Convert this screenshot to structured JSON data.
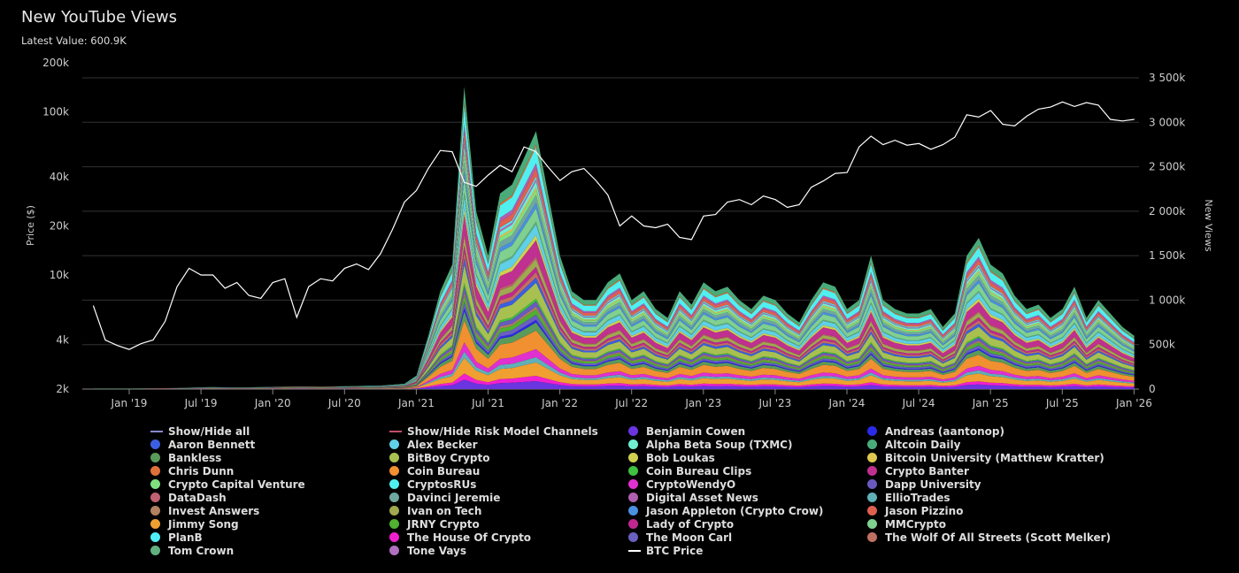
{
  "title": "New YouTube Views",
  "latest_value": "Latest Value: 600.9K",
  "chart_data": {
    "type": "area",
    "stacked": true,
    "title": "New YouTube Views",
    "y_left": {
      "label": "Price ($)",
      "scale": "log",
      "ticks": [
        "2k",
        "4k",
        "10k",
        "20k",
        "40k",
        "100k",
        "200k"
      ],
      "tick_values": [
        2000,
        4000,
        10000,
        20000,
        40000,
        100000,
        200000
      ]
    },
    "y_right": {
      "label": "New Views",
      "scale": "linear",
      "ticks": [
        "0",
        "500k",
        "1 000k",
        "1 500k",
        "2 000k",
        "2 500k",
        "3 000k",
        "3 500k"
      ],
      "range": [
        0,
        3500000
      ]
    },
    "x_ticks": [
      "Jan '19",
      "Jul '19",
      "Jan '20",
      "Jul '20",
      "Jan '21",
      "Jul '21",
      "Jan '22",
      "Jul '22",
      "Jan '23",
      "Jul '23",
      "Jan '24",
      "Jul '24",
      "Jan '25",
      "Jul '25",
      "Jan '26"
    ],
    "x_months": [
      "2018-10",
      "2018-11",
      "2018-12",
      "2019-01",
      "2019-02",
      "2019-03",
      "2019-04",
      "2019-05",
      "2019-06",
      "2019-07",
      "2019-08",
      "2019-09",
      "2019-10",
      "2019-11",
      "2019-12",
      "2020-01",
      "2020-02",
      "2020-03",
      "2020-04",
      "2020-05",
      "2020-06",
      "2020-07",
      "2020-08",
      "2020-09",
      "2020-10",
      "2020-11",
      "2020-12",
      "2021-01",
      "2021-02",
      "2021-03",
      "2021-04",
      "2021-05",
      "2021-06",
      "2021-07",
      "2021-08",
      "2021-09",
      "2021-10",
      "2021-11",
      "2021-12",
      "2022-01",
      "2022-02",
      "2022-03",
      "2022-04",
      "2022-05",
      "2022-06",
      "2022-07",
      "2022-08",
      "2022-09",
      "2022-10",
      "2022-11",
      "2022-12",
      "2023-01",
      "2023-02",
      "2023-03",
      "2023-04",
      "2023-05",
      "2023-06",
      "2023-07",
      "2023-08",
      "2023-09",
      "2023-10",
      "2023-11",
      "2023-12",
      "2024-01",
      "2024-02",
      "2024-03",
      "2024-04",
      "2024-05",
      "2024-06",
      "2024-07",
      "2024-08",
      "2024-09",
      "2024-10",
      "2024-11",
      "2024-12",
      "2025-01",
      "2025-02",
      "2025-03",
      "2025-04",
      "2025-05",
      "2025-06",
      "2025-07",
      "2025-08",
      "2025-09",
      "2025-10",
      "2025-11",
      "2025-12",
      "2026-01"
    ],
    "btc_price": [
      6500,
      4000,
      3700,
      3500,
      3800,
      4000,
      5200,
      8500,
      11000,
      10000,
      10000,
      8300,
      9000,
      7500,
      7200,
      9000,
      9500,
      5500,
      8500,
      9500,
      9200,
      11000,
      11700,
      10800,
      13500,
      19000,
      28000,
      33000,
      45000,
      58000,
      57000,
      37000,
      35000,
      41000,
      47000,
      43000,
      61000,
      57000,
      46000,
      38000,
      43000,
      45000,
      38000,
      31000,
      20000,
      23000,
      20000,
      19500,
      20500,
      17000,
      16500,
      23000,
      23500,
      28000,
      29000,
      27000,
      30500,
      29000,
      26000,
      27000,
      34500,
      37700,
      42000,
      42500,
      61000,
      71000,
      63000,
      67000,
      62500,
      64000,
      59000,
      63000,
      70000,
      96000,
      93000,
      102000,
      84000,
      82000,
      94000,
      104000,
      107000,
      115000,
      108000,
      114000,
      110000,
      90000,
      88000,
      90000
    ],
    "total_new_views_k": [
      5,
      5,
      5,
      5,
      6,
      8,
      10,
      12,
      15,
      20,
      22,
      20,
      18,
      20,
      22,
      25,
      28,
      30,
      30,
      28,
      30,
      32,
      35,
      38,
      40,
      50,
      60,
      150,
      600,
      1100,
      1400,
      3400,
      2000,
      1500,
      2200,
      2300,
      2600,
      2900,
      2200,
      1500,
      1100,
      1000,
      1000,
      1200,
      1300,
      1000,
      1100,
      900,
      800,
      1100,
      950,
      1200,
      1100,
      1150,
      1000,
      900,
      1050,
      1000,
      850,
      750,
      1000,
      1200,
      1150,
      900,
      1000,
      1500,
      1000,
      900,
      850,
      850,
      900,
      700,
      850,
      1500,
      1700,
      1400,
      1300,
      1050,
      900,
      950,
      800,
      900,
      1150,
      800,
      1000,
      850,
      700,
      600
    ],
    "legend": [
      {
        "name": "Show/Hide all",
        "kind": "line",
        "color": "#8888cc"
      },
      {
        "name": "Show/Hide Risk Model Channels",
        "kind": "line",
        "color": "#c0506a"
      },
      {
        "name": "Benjamin Cowen",
        "color": "#6a35e0"
      },
      {
        "name": "Andreas (aantonop)",
        "color": "#2a2ae8"
      },
      {
        "name": "Aaron Bennett",
        "color": "#3b5fe0"
      },
      {
        "name": "Alex Becker",
        "color": "#5fd0e8"
      },
      {
        "name": "Alpha Beta Soup (TXMC)",
        "color": "#6ff0d0"
      },
      {
        "name": "Altcoin Daily",
        "color": "#4aab7a"
      },
      {
        "name": "Bankless",
        "color": "#5a9a5a"
      },
      {
        "name": "BitBoy Crypto",
        "color": "#a8c050"
      },
      {
        "name": "Bob Loukas",
        "color": "#d0d050"
      },
      {
        "name": "Bitcoin University (Matthew Kratter)",
        "color": "#e0c850"
      },
      {
        "name": "Chris Dunn",
        "color": "#e0703a"
      },
      {
        "name": "Coin Bureau",
        "color": "#f09030"
      },
      {
        "name": "Coin Bureau Clips",
        "color": "#40c040"
      },
      {
        "name": "Crypto Banter",
        "color": "#c03090"
      },
      {
        "name": "Crypto Capital Venture",
        "color": "#80e080"
      },
      {
        "name": "CryptosRUs",
        "color": "#50f0f0"
      },
      {
        "name": "CryptoWendyO",
        "color": "#e030d0"
      },
      {
        "name": "Dapp University",
        "color": "#6a5ac0"
      },
      {
        "name": "DataDash",
        "color": "#c06070"
      },
      {
        "name": "Davinci Jeremie",
        "color": "#70a8a0"
      },
      {
        "name": "Digital Asset News",
        "color": "#b060b0"
      },
      {
        "name": "EllioTrades",
        "color": "#60b0b8"
      },
      {
        "name": "Invest Answers",
        "color": "#b08060"
      },
      {
        "name": "Ivan on Tech",
        "color": "#a0a850"
      },
      {
        "name": "Jason Appleton (Crypto Crow)",
        "color": "#4a90e0"
      },
      {
        "name": "Jason Pizzino",
        "color": "#e06050"
      },
      {
        "name": "Jimmy Song",
        "color": "#f0a030"
      },
      {
        "name": "JRNY Crypto",
        "color": "#50b030"
      },
      {
        "name": "Lady of Crypto",
        "color": "#c02890"
      },
      {
        "name": "MMCrypto",
        "color": "#80d090"
      },
      {
        "name": "PlanB",
        "color": "#50f0f8"
      },
      {
        "name": "The House Of Crypto",
        "color": "#f020d0"
      },
      {
        "name": "The Moon Carl",
        "color": "#6a60c0"
      },
      {
        "name": "The Wolf Of All Streets (Scott Melker)",
        "color": "#c07060"
      },
      {
        "name": "Tom Crown",
        "color": "#60b080"
      },
      {
        "name": "Tone Vays",
        "color": "#b070c0"
      },
      {
        "name": "BTC Price",
        "kind": "line",
        "color": "#ffffff"
      }
    ]
  }
}
